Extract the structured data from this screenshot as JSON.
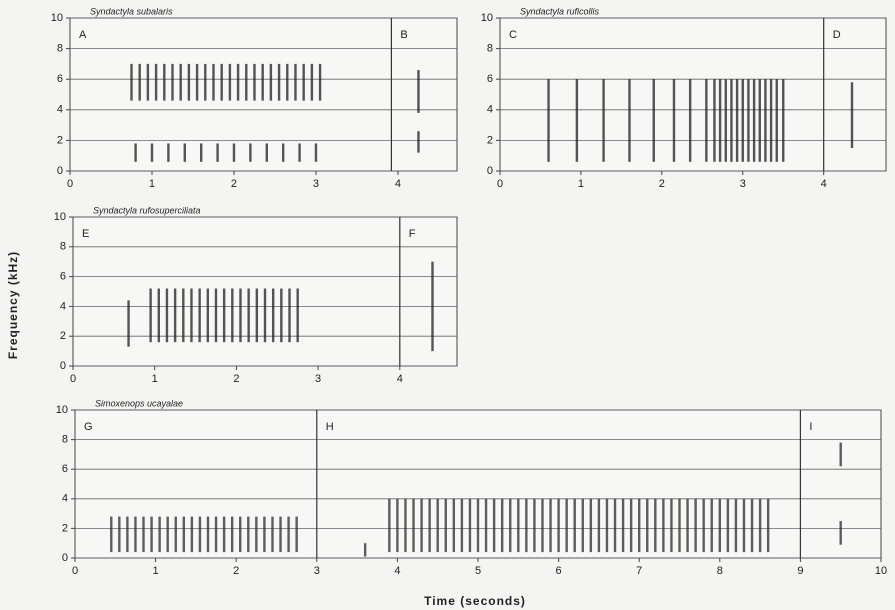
{
  "axis_labels": {
    "x": "Time (seconds)",
    "y": "Frequency (kHz)"
  },
  "chart_data": [
    {
      "type": "spectrogram",
      "title": "Syndactyla subalaris",
      "panel_labels": [
        "A",
        "B"
      ],
      "dividers": [
        3.92
      ],
      "xlim": [
        0,
        4.72
      ],
      "ylim": [
        0,
        10
      ],
      "xticks": [
        0,
        1,
        2,
        3,
        4
      ],
      "yticks": [
        0,
        2,
        4,
        6,
        8,
        10
      ],
      "grid": true,
      "color": "#1e1e1e",
      "notes": {
        "x": [
          0.75,
          0.85,
          0.95,
          1.05,
          1.15,
          1.25,
          1.35,
          1.45,
          1.55,
          1.65,
          1.75,
          1.85,
          1.95,
          2.05,
          2.15,
          2.25,
          2.35,
          2.45,
          2.55,
          2.65,
          2.75,
          2.85,
          2.95,
          3.05,
          0.8,
          1.0,
          1.2,
          1.4,
          1.6,
          1.8,
          2.0,
          2.2,
          2.4,
          2.6,
          2.8,
          3.0,
          4.25,
          4.25
        ],
        "low": [
          4.6,
          4.6,
          4.6,
          4.6,
          4.6,
          4.6,
          4.6,
          4.6,
          4.6,
          4.6,
          4.6,
          4.6,
          4.6,
          4.6,
          4.6,
          4.6,
          4.6,
          4.6,
          4.6,
          4.6,
          4.6,
          4.6,
          4.6,
          4.6,
          0.6,
          0.6,
          0.6,
          0.6,
          0.6,
          0.6,
          0.6,
          0.6,
          0.6,
          0.6,
          0.6,
          0.6,
          3.8,
          1.2
        ],
        "high": [
          7.0,
          7.0,
          7.0,
          7.0,
          7.0,
          7.0,
          7.0,
          7.0,
          7.0,
          7.0,
          7.0,
          7.0,
          7.0,
          7.0,
          7.0,
          7.0,
          7.0,
          7.0,
          7.0,
          7.0,
          7.0,
          7.0,
          7.0,
          7.0,
          1.8,
          1.8,
          1.8,
          1.8,
          1.8,
          1.8,
          1.8,
          1.8,
          1.8,
          1.8,
          1.8,
          1.8,
          6.6,
          2.6
        ]
      }
    },
    {
      "type": "spectrogram",
      "title": "Syndactyla ruficollis",
      "panel_labels": [
        "C",
        "D"
      ],
      "dividers": [
        4.0
      ],
      "xlim": [
        0,
        4.77
      ],
      "ylim": [
        0,
        10
      ],
      "xticks": [
        0,
        1,
        2,
        3,
        4
      ],
      "yticks": [
        0,
        2,
        4,
        6,
        8,
        10
      ],
      "grid": true,
      "color": "#1e1e1e",
      "notes": {
        "x": [
          0.6,
          0.95,
          1.28,
          1.6,
          1.9,
          2.15,
          2.35,
          2.55,
          2.65,
          2.72,
          2.79,
          2.86,
          2.93,
          3.0,
          3.07,
          3.14,
          3.21,
          3.28,
          3.35,
          3.42,
          3.5,
          4.35
        ],
        "low": [
          0.6,
          0.6,
          0.6,
          0.6,
          0.6,
          0.6,
          0.6,
          0.6,
          0.6,
          0.6,
          0.6,
          0.6,
          0.6,
          0.6,
          0.6,
          0.6,
          0.6,
          0.6,
          0.6,
          0.6,
          0.6,
          1.5
        ],
        "high": [
          6.0,
          6.0,
          6.0,
          6.0,
          6.0,
          6.0,
          6.0,
          6.0,
          6.0,
          6.0,
          6.0,
          6.0,
          6.0,
          6.0,
          6.0,
          6.0,
          6.0,
          6.0,
          6.0,
          6.0,
          6.0,
          5.8
        ]
      }
    },
    {
      "type": "spectrogram",
      "title": "Syndactyla rufosuperciliata",
      "panel_labels": [
        "E",
        "F"
      ],
      "dividers": [
        4.0
      ],
      "xlim": [
        0,
        4.7
      ],
      "ylim": [
        0,
        10
      ],
      "xticks": [
        0,
        1,
        2,
        3,
        4
      ],
      "yticks": [
        0,
        2,
        4,
        6,
        8,
        10
      ],
      "grid": true,
      "color": "#1e1e1e",
      "notes": {
        "x": [
          0.68,
          0.95,
          1.05,
          1.15,
          1.25,
          1.35,
          1.45,
          1.55,
          1.65,
          1.75,
          1.85,
          1.95,
          2.05,
          2.15,
          2.25,
          2.35,
          2.45,
          2.55,
          2.65,
          2.75,
          4.4
        ],
        "low": [
          1.3,
          1.6,
          1.6,
          1.6,
          1.6,
          1.6,
          1.6,
          1.6,
          1.6,
          1.6,
          1.6,
          1.6,
          1.6,
          1.6,
          1.6,
          1.6,
          1.6,
          1.6,
          1.6,
          1.6,
          1.0
        ],
        "high": [
          4.4,
          5.2,
          5.2,
          5.2,
          5.2,
          5.2,
          5.2,
          5.2,
          5.2,
          5.2,
          5.2,
          5.2,
          5.2,
          5.2,
          5.2,
          5.2,
          5.2,
          5.2,
          5.2,
          5.2,
          7.0
        ]
      }
    },
    {
      "type": "spectrogram",
      "title": "Simoxenops ucayalae",
      "panel_labels": [
        "G",
        "H",
        "I"
      ],
      "dividers": [
        3,
        9
      ],
      "xlim": [
        0,
        10
      ],
      "ylim": [
        0,
        10
      ],
      "xticks": [
        0,
        1,
        2,
        3,
        4,
        5,
        6,
        7,
        8,
        9,
        10
      ],
      "yticks": [
        0,
        2,
        4,
        6,
        8,
        10
      ],
      "grid": true,
      "color": "#2a2a2a",
      "notes": {
        "x": [
          0.45,
          0.55,
          0.65,
          0.75,
          0.85,
          0.95,
          1.05,
          1.15,
          1.25,
          1.35,
          1.45,
          1.55,
          1.65,
          1.75,
          1.85,
          1.95,
          2.05,
          2.15,
          2.25,
          2.35,
          2.45,
          2.55,
          2.65,
          2.75,
          3.6,
          3.9,
          4.0,
          4.1,
          4.2,
          4.3,
          4.4,
          4.5,
          4.6,
          4.7,
          4.8,
          4.9,
          5.0,
          5.1,
          5.2,
          5.3,
          5.4,
          5.5,
          5.6,
          5.7,
          5.8,
          5.9,
          6.0,
          6.1,
          6.2,
          6.3,
          6.4,
          6.5,
          6.6,
          6.7,
          6.8,
          6.9,
          7.0,
          7.1,
          7.2,
          7.3,
          7.4,
          7.5,
          7.6,
          7.7,
          7.8,
          7.9,
          8.0,
          8.1,
          8.2,
          8.3,
          8.4,
          8.5,
          8.6,
          9.5,
          9.5
        ],
        "low": [
          0.4,
          0.4,
          0.4,
          0.4,
          0.4,
          0.4,
          0.4,
          0.4,
          0.4,
          0.4,
          0.4,
          0.4,
          0.4,
          0.4,
          0.4,
          0.4,
          0.4,
          0.4,
          0.4,
          0.4,
          0.4,
          0.4,
          0.4,
          0.4,
          0.1,
          0.4,
          0.4,
          0.4,
          0.4,
          0.4,
          0.4,
          0.4,
          0.4,
          0.4,
          0.4,
          0.4,
          0.4,
          0.4,
          0.4,
          0.4,
          0.4,
          0.4,
          0.4,
          0.4,
          0.4,
          0.4,
          0.4,
          0.4,
          0.4,
          0.4,
          0.4,
          0.4,
          0.4,
          0.4,
          0.4,
          0.4,
          0.4,
          0.4,
          0.4,
          0.4,
          0.4,
          0.4,
          0.4,
          0.4,
          0.4,
          0.4,
          0.4,
          0.4,
          0.4,
          0.4,
          0.4,
          0.4,
          0.4,
          0.9,
          6.2
        ],
        "high": [
          2.8,
          2.8,
          2.8,
          2.8,
          2.8,
          2.8,
          2.8,
          2.8,
          2.8,
          2.8,
          2.8,
          2.8,
          2.8,
          2.8,
          2.8,
          2.8,
          2.8,
          2.8,
          2.8,
          2.8,
          2.8,
          2.8,
          2.8,
          2.8,
          1.0,
          4.0,
          4.0,
          4.0,
          4.0,
          4.0,
          4.0,
          4.0,
          4.0,
          4.0,
          4.0,
          4.0,
          4.0,
          4.0,
          4.0,
          4.0,
          4.0,
          4.0,
          4.0,
          4.0,
          4.0,
          4.0,
          4.0,
          4.0,
          4.0,
          4.0,
          4.0,
          4.0,
          4.0,
          4.0,
          4.0,
          4.0,
          4.0,
          4.0,
          4.0,
          4.0,
          4.0,
          4.0,
          4.0,
          4.0,
          4.0,
          4.0,
          4.0,
          4.0,
          4.0,
          4.0,
          4.0,
          4.0,
          4.0,
          2.5,
          7.8
        ]
      }
    }
  ]
}
